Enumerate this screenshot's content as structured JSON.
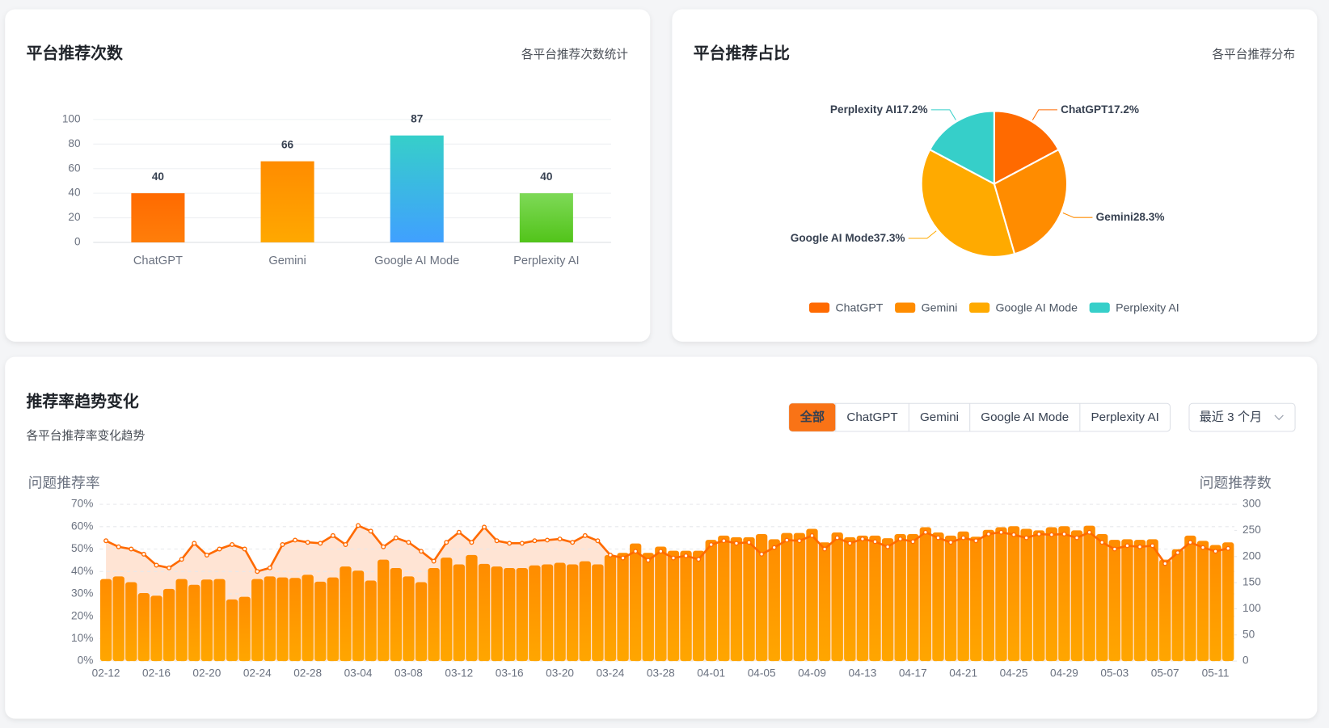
{
  "chart_data": [
    {
      "type": "bar",
      "title": "平台推荐次数",
      "subtitle": "各平台推荐次数统计",
      "categories": [
        "ChatGPT",
        "Gemini",
        "Google AI Mode",
        "Perplexity AI"
      ],
      "values": [
        40,
        66,
        87,
        40
      ],
      "colors": [
        [
          "#ff6a00",
          "#ff7e0a"
        ],
        [
          "#ff8c00",
          "#ffa800"
        ],
        [
          "#36cfc9",
          "#40a0ff"
        ],
        [
          "#7ed957",
          "#52c41a"
        ]
      ],
      "ylim": [
        0,
        100
      ],
      "yticks": [
        0,
        20,
        40,
        60,
        80,
        100
      ],
      "grid": true
    },
    {
      "type": "pie",
      "title": "平台推荐占比",
      "subtitle": "各平台推荐分布",
      "categories": [
        "ChatGPT",
        "Gemini",
        "Google AI Mode",
        "Perplexity AI"
      ],
      "values": [
        17.2,
        28.3,
        37.3,
        17.2
      ],
      "value_labels": [
        "17.2%",
        "28.3%",
        "37.3%",
        "17.2%"
      ],
      "colors": [
        "#ff6a00",
        "#ff8c00",
        "#ffaa00",
        "#36cfc9"
      ],
      "legend": "bottom"
    },
    {
      "type": "combo",
      "title": "推荐率趋势变化",
      "subtitle": "各平台推荐率变化趋势",
      "ylabel": "问题推荐率",
      "y2label": "问题推荐数",
      "categories": [
        "02-12",
        null,
        null,
        null,
        "02-16",
        null,
        null,
        null,
        "02-20",
        null,
        null,
        null,
        "02-24",
        null,
        null,
        null,
        "02-28",
        null,
        null,
        null,
        "03-04",
        null,
        null,
        null,
        "03-08",
        null,
        null,
        null,
        "03-12",
        null,
        null,
        null,
        "03-16",
        null,
        null,
        null,
        "03-20",
        null,
        null,
        null,
        "03-24",
        null,
        null,
        null,
        "03-28",
        null,
        null,
        null,
        "04-01",
        null,
        null,
        null,
        "04-05",
        null,
        null,
        null,
        "04-09",
        null,
        null,
        null,
        "04-13",
        null,
        null,
        null,
        "04-17",
        null,
        null,
        null,
        "04-21",
        null,
        null,
        null,
        "04-25",
        null,
        null,
        null,
        "04-29",
        null,
        null,
        null,
        "05-03",
        null,
        null,
        null,
        "05-07",
        null,
        null,
        null,
        "05-11",
        null
      ],
      "series": [
        {
          "type": "bar",
          "axis": "y2",
          "color": [
            "#ff8c00",
            "#ffa600"
          ],
          "values": [
            157,
            162,
            151,
            130,
            125,
            138,
            157,
            146,
            156,
            157,
            118,
            123,
            157,
            162,
            160,
            159,
            165,
            152,
            160,
            181,
            173,
            154,
            194,
            178,
            162,
            151,
            178,
            198,
            185,
            203,
            186,
            181,
            178,
            178,
            183,
            185,
            188,
            185,
            191,
            185,
            203,
            207,
            225,
            207,
            219,
            211,
            211,
            211,
            232,
            240,
            237,
            237,
            243,
            233,
            245,
            245,
            253,
            227,
            246,
            237,
            240,
            240,
            235,
            243,
            243,
            256,
            246,
            240,
            248,
            238,
            251,
            256,
            258,
            253,
            250,
            256,
            258,
            250,
            259,
            243,
            232,
            233,
            232,
            233,
            194,
            214,
            240,
            230,
            222,
            227
          ]
        },
        {
          "type": "line",
          "axis": "y",
          "color": "#ff6a00",
          "area_color": "#ffd9c2",
          "values": [
            53.7,
            51,
            50,
            47.7,
            42.8,
            41.6,
            45.4,
            52.6,
            47.3,
            50,
            52,
            50,
            40,
            41.6,
            52,
            54,
            53,
            52.6,
            56,
            52,
            60.5,
            58,
            51,
            55,
            53,
            49,
            44.6,
            53,
            57.5,
            53,
            59.8,
            53.7,
            52.6,
            52.6,
            53.7,
            54,
            54.5,
            53,
            56,
            53.7,
            47.3,
            46,
            49,
            45,
            49,
            46,
            47,
            45.4,
            52,
            53.7,
            52.6,
            53,
            47.7,
            50.7,
            54,
            53.7,
            56,
            50,
            55,
            52.6,
            54.5,
            53.3,
            51,
            54.5,
            53.3,
            57.5,
            55,
            53,
            55,
            53.7,
            56.7,
            57.5,
            56.4,
            55,
            56.7,
            56.4,
            56.7,
            55,
            57.5,
            53,
            50,
            51.5,
            51,
            51.5,
            43.5,
            48.4,
            53,
            50.7,
            49,
            50.3
          ]
        }
      ],
      "ylim": [
        0,
        70
      ],
      "yticks": [
        {
          "value": 0,
          "label": "0%"
        },
        {
          "value": 10,
          "label": "10%"
        },
        {
          "value": 20,
          "label": "20%"
        },
        {
          "value": 30,
          "label": "30%"
        },
        {
          "value": 40,
          "label": "40%"
        },
        {
          "value": 50,
          "label": "50%"
        },
        {
          "value": 60,
          "label": "60%"
        },
        {
          "value": 70,
          "label": "70%"
        }
      ],
      "y2lim": [
        0,
        300
      ],
      "y2ticks": [
        0,
        50,
        100,
        150,
        200,
        250,
        300
      ],
      "grid": true
    }
  ],
  "filters": {
    "tabs": [
      "全部",
      "ChatGPT",
      "Gemini",
      "Google AI Mode",
      "Perplexity AI"
    ],
    "active": 0,
    "range": "最近 3 个月",
    "accent": "#f97316"
  }
}
